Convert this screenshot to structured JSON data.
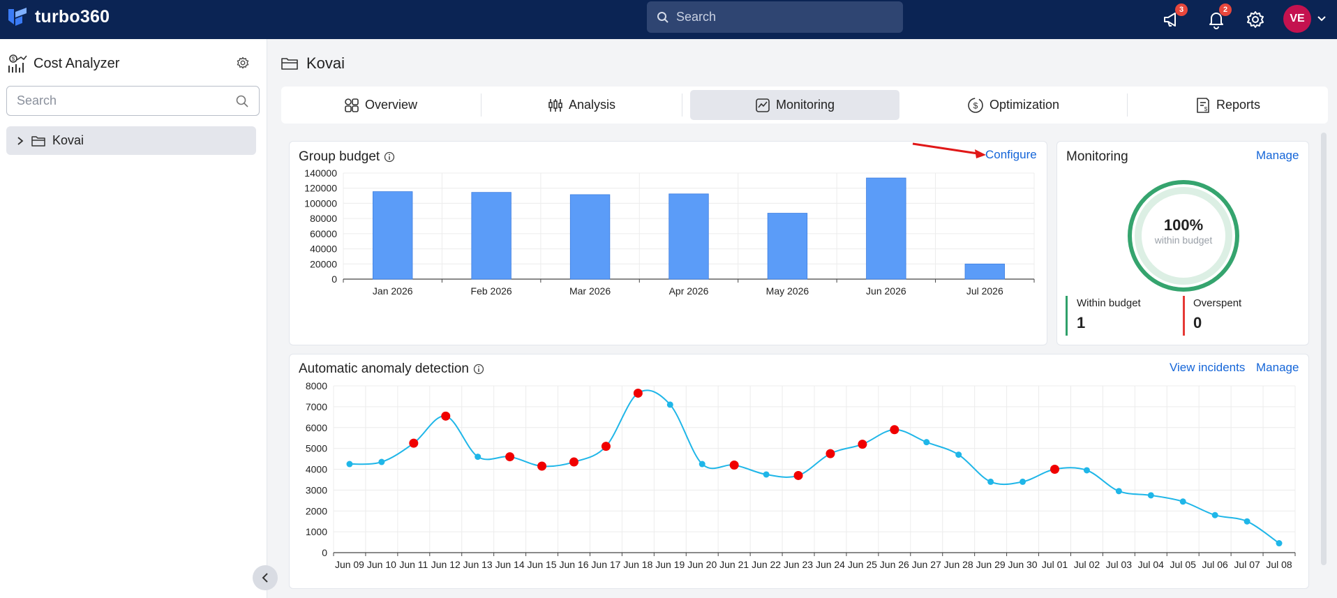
{
  "app": {
    "name": "turbo360"
  },
  "topbar": {
    "search_placeholder": "Search",
    "announcements_count": "3",
    "notifications_count": "2",
    "avatar_initials": "VE"
  },
  "sidebar": {
    "title": "Cost Analyzer",
    "search_placeholder": "Search",
    "items": [
      {
        "label": "Kovai"
      }
    ]
  },
  "page": {
    "title": "Kovai"
  },
  "tabs": [
    {
      "label": "Overview",
      "icon": "grid-icon"
    },
    {
      "label": "Analysis",
      "icon": "analysis-icon"
    },
    {
      "label": "Monitoring",
      "icon": "monitoring-icon",
      "active": true
    },
    {
      "label": "Optimization",
      "icon": "optimization-icon"
    },
    {
      "label": "Reports",
      "icon": "reports-icon"
    }
  ],
  "group_budget": {
    "title": "Group budget",
    "configure_label": "Configure"
  },
  "monitoring": {
    "title": "Monitoring",
    "manage_label": "Manage",
    "percent": "100%",
    "percent_caption": "within budget",
    "within_label": "Within budget",
    "within_value": "1",
    "overspent_label": "Overspent",
    "overspent_value": "0",
    "colors": {
      "within": "#2fa06a",
      "overspent": "#e53935"
    }
  },
  "anomaly": {
    "title": "Automatic anomaly detection",
    "view_incidents_label": "View incidents",
    "manage_label": "Manage"
  },
  "chart_data": [
    {
      "type": "bar",
      "categories": [
        "Jan 2026",
        "Feb 2026",
        "Mar 2026",
        "Apr 2026",
        "May 2026",
        "Jun 2026",
        "Jul 2026"
      ],
      "values": [
        115500,
        114500,
        111500,
        112500,
        87000,
        133500,
        20000
      ],
      "yticks": [
        0,
        20000,
        40000,
        60000,
        80000,
        100000,
        120000,
        140000
      ],
      "ylim": [
        0,
        140000
      ],
      "grid": true,
      "color": "#5b9cf8"
    },
    {
      "type": "line",
      "x": [
        "Jun 09",
        "Jun 10",
        "Jun 11",
        "Jun 12",
        "Jun 13",
        "Jun 14",
        "Jun 15",
        "Jun 16",
        "Jun 17",
        "Jun 18",
        "Jun 19",
        "Jun 20",
        "Jun 21",
        "Jun 22",
        "Jun 23",
        "Jun 24",
        "Jun 25",
        "Jun 26",
        "Jun 27",
        "Jun 28",
        "Jun 29",
        "Jun 30",
        "Jul 01",
        "Jul 02",
        "Jul 03",
        "Jul 04",
        "Jul 05",
        "Jul 06",
        "Jul 07",
        "Jul 08"
      ],
      "values": [
        4250,
        4350,
        5250,
        6550,
        4600,
        4600,
        4150,
        4350,
        5100,
        7650,
        7100,
        4250,
        4200,
        3750,
        3700,
        4750,
        5200,
        5900,
        5300,
        4700,
        3400,
        3400,
        4000,
        3950,
        2950,
        2750,
        2450,
        1800,
        1500,
        450
      ],
      "anomalies": [
        false,
        false,
        true,
        true,
        false,
        true,
        true,
        true,
        true,
        true,
        false,
        false,
        true,
        false,
        true,
        true,
        true,
        true,
        false,
        false,
        false,
        false,
        true,
        false,
        false,
        false,
        false,
        false,
        false,
        false
      ],
      "yticks": [
        0,
        1000,
        2000,
        3000,
        4000,
        5000,
        6000,
        7000,
        8000
      ],
      "ylim": [
        0,
        8000
      ],
      "grid": true,
      "line_color": "#1fb6e8",
      "anomaly_color": "#f00000"
    }
  ]
}
